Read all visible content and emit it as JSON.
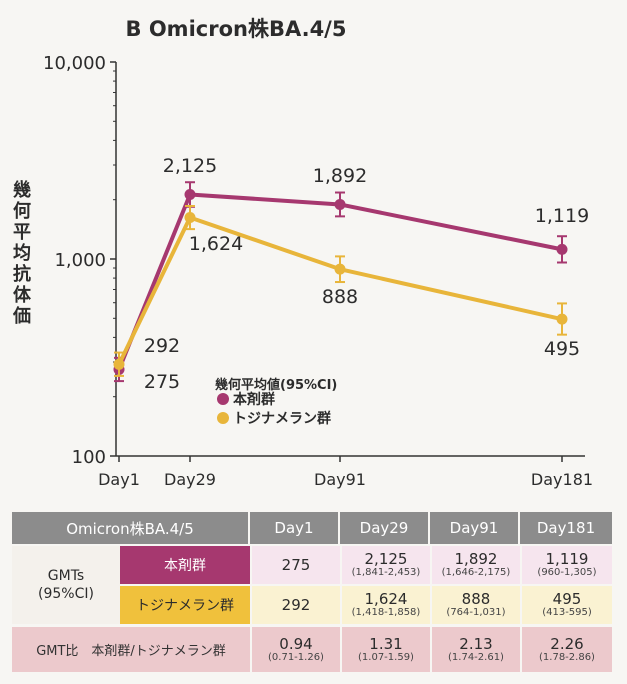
{
  "chart_data": {
    "type": "line",
    "title": "B Omicron株BA.4/5",
    "ylabel": "幾何平均抗体価",
    "yscale": "log",
    "ylim": [
      100,
      10000
    ],
    "yticks": [
      100,
      1000,
      10000
    ],
    "ytick_labels": [
      "100",
      "1,000",
      "10,000"
    ],
    "x": [
      1,
      29,
      91,
      181
    ],
    "categories": [
      "Day1",
      "Day29",
      "Day91",
      "Day181"
    ],
    "legend_title": "幾何平均値(95%CI)",
    "legend_position": "center",
    "grid": false,
    "series": [
      {
        "name": "本剤群",
        "color": "#a6386f",
        "values": [
          275,
          2125,
          1892,
          1119
        ],
        "ci_low": [
          240,
          1841,
          1646,
          960
        ],
        "ci_high": [
          315,
          2453,
          2175,
          1305
        ],
        "labels": [
          "275",
          "2,125",
          "1,892",
          "1,119"
        ]
      },
      {
        "name": "トジナメラン群",
        "color": "#e8b53a",
        "values": [
          292,
          1624,
          888,
          495
        ],
        "ci_low": [
          255,
          1418,
          764,
          413
        ],
        "ci_high": [
          335,
          1858,
          1031,
          595
        ],
        "labels": [
          "292",
          "1,624",
          "888",
          "495"
        ]
      }
    ]
  },
  "table": {
    "header": {
      "variant": "Omicron株BA.4/5",
      "days": [
        "Day1",
        "Day29",
        "Day91",
        "Day181"
      ]
    },
    "group_label_line1": "GMTs",
    "group_label_line2": "(95%CI)",
    "rows": [
      {
        "label": "本剤群",
        "cells": [
          {
            "main": "275",
            "ci": ""
          },
          {
            "main": "2,125",
            "ci": "(1,841-2,453)"
          },
          {
            "main": "1,892",
            "ci": "(1,646-2,175)"
          },
          {
            "main": "1,119",
            "ci": "(960-1,305)"
          }
        ]
      },
      {
        "label": "トジナメラン群",
        "cells": [
          {
            "main": "292",
            "ci": ""
          },
          {
            "main": "1,624",
            "ci": "(1,418-1,858)"
          },
          {
            "main": "888",
            "ci": "(764-1,031)"
          },
          {
            "main": "495",
            "ci": "(413-595)"
          }
        ]
      }
    ],
    "ratio_row": {
      "label": "GMT比　本剤群/トジナメラン群",
      "cells": [
        {
          "main": "0.94",
          "ci": "(0.71-1.26)"
        },
        {
          "main": "1.31",
          "ci": "(1.07-1.59)"
        },
        {
          "main": "2.13",
          "ci": "(1.74-2.61)"
        },
        {
          "main": "2.26",
          "ci": "(1.78-2.86)"
        }
      ]
    }
  }
}
